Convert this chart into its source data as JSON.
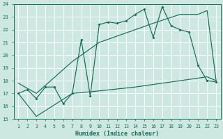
{
  "xlabel": "Humidex (Indice chaleur)",
  "bg_color": "#cce8e0",
  "grid_color": "#b0d8d0",
  "line_color": "#1a6b5a",
  "xlim_min": 0.5,
  "xlim_max": 23.5,
  "ylim_min": 15,
  "ylim_max": 24,
  "xticks": [
    1,
    2,
    3,
    4,
    5,
    6,
    7,
    8,
    9,
    10,
    11,
    12,
    13,
    14,
    15,
    16,
    17,
    18,
    19,
    20,
    21,
    22,
    23
  ],
  "yticks": [
    15,
    16,
    17,
    18,
    19,
    20,
    21,
    22,
    23,
    24
  ],
  "jagged_x": [
    1,
    2,
    3,
    4,
    5,
    6,
    7,
    8,
    9,
    10,
    11,
    12,
    13,
    14,
    15,
    16,
    17,
    18,
    19,
    20,
    21,
    22,
    23
  ],
  "jagged_y": [
    17.0,
    17.3,
    16.6,
    17.5,
    17.5,
    16.2,
    17.0,
    21.2,
    16.8,
    22.4,
    22.6,
    22.5,
    22.7,
    23.2,
    23.6,
    21.4,
    23.8,
    22.3,
    22.0,
    21.8,
    19.2,
    18.0,
    17.9
  ],
  "upper_x": [
    1,
    3,
    7,
    10,
    14,
    16,
    19,
    21,
    22,
    23
  ],
  "upper_y": [
    17.8,
    17.0,
    19.5,
    21.0,
    22.0,
    22.5,
    23.2,
    23.2,
    23.5,
    18.0
  ],
  "lower_x": [
    1,
    3,
    7,
    10,
    14,
    16,
    18,
    20,
    22,
    23
  ],
  "lower_y": [
    17.0,
    15.2,
    17.0,
    17.2,
    17.5,
    17.7,
    17.9,
    18.1,
    18.3,
    18.0
  ]
}
